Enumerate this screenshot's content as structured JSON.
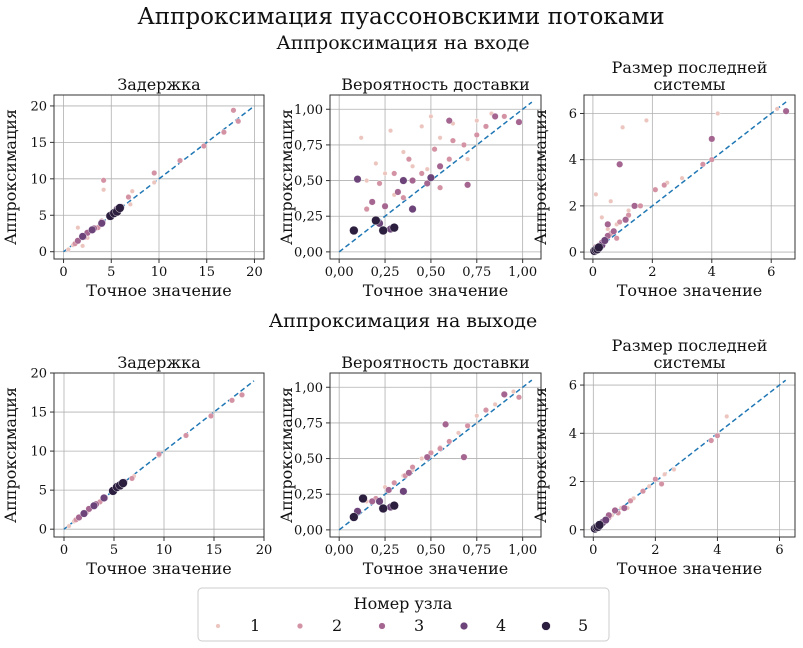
{
  "figure": {
    "title": "Аппроксимация пуассоновскими потоками",
    "row_titles": [
      "Аппроксимация на входе",
      "Аппроксимация на выходе"
    ],
    "row_title_color": "#8e2c6b"
  },
  "legend": {
    "title": "Номер узла",
    "items": [
      {
        "label": "1",
        "color": "#ecc5bf"
      },
      {
        "label": "2",
        "color": "#d393a4"
      },
      {
        "label": "3",
        "color": "#a46690"
      },
      {
        "label": "4",
        "color": "#6c4479"
      },
      {
        "label": "5",
        "color": "#2c1e3e"
      }
    ]
  },
  "colors": {
    "diagonal": "#1f77b4",
    "grid": "#b0b0b0"
  },
  "chart_data": [
    {
      "type": "scatter",
      "row": 0,
      "col": 0,
      "title": "Задержка",
      "xlabel": "Точное значение",
      "ylabel": "Аппроксимация",
      "xlim": [
        -1,
        21
      ],
      "ylim": [
        -1,
        21.5
      ],
      "xticks": [
        0,
        5,
        10,
        15,
        20
      ],
      "yticks": [
        0,
        5,
        10,
        15,
        20
      ],
      "tick_labels_x": [
        "0",
        "5",
        "10",
        "15",
        "20"
      ],
      "tick_labels_y": [
        "0",
        "5",
        "10",
        "15",
        "20"
      ],
      "diagonal": [
        0,
        20
      ],
      "grid": true,
      "points": [
        [
          0.5,
          0.3,
          1
        ],
        [
          1.0,
          0.9,
          1
        ],
        [
          1.5,
          3.3,
          1
        ],
        [
          2.0,
          0.8,
          1
        ],
        [
          2.5,
          1.9,
          1
        ],
        [
          3.0,
          2.8,
          1
        ],
        [
          4.2,
          8.5,
          1
        ],
        [
          7.2,
          8.3,
          1
        ],
        [
          7.0,
          6.5,
          1
        ],
        [
          9.5,
          9.5,
          1
        ],
        [
          1.2,
          1.1,
          2
        ],
        [
          2.2,
          2.0,
          2
        ],
        [
          3.6,
          3.3,
          2
        ],
        [
          4.0,
          4.2,
          2
        ],
        [
          4.2,
          9.8,
          2
        ],
        [
          6.8,
          7.5,
          2
        ],
        [
          9.5,
          10.8,
          2
        ],
        [
          12.2,
          12.5,
          2
        ],
        [
          14.7,
          14.5,
          2
        ],
        [
          16.8,
          16.4,
          2
        ],
        [
          17.8,
          19.4,
          2
        ],
        [
          18.3,
          17.9,
          2
        ],
        [
          1.5,
          1.5,
          3
        ],
        [
          2.5,
          2.6,
          3
        ],
        [
          3.2,
          3.2,
          3
        ],
        [
          4.1,
          4.0,
          3
        ],
        [
          5.0,
          5.0,
          3
        ],
        [
          5.8,
          5.7,
          3
        ],
        [
          2.0,
          2.1,
          4
        ],
        [
          3.0,
          3.0,
          4
        ],
        [
          4.0,
          3.9,
          4
        ],
        [
          5.1,
          5.2,
          4
        ],
        [
          5.6,
          5.8,
          4
        ],
        [
          6.0,
          6.1,
          4
        ],
        [
          4.9,
          4.9,
          5
        ],
        [
          5.3,
          5.3,
          5
        ],
        [
          5.6,
          5.5,
          5
        ],
        [
          5.9,
          6.0,
          5
        ]
      ]
    },
    {
      "type": "scatter",
      "row": 0,
      "col": 1,
      "title": "Вероятность доставки",
      "xlabel": "Точное значение",
      "ylabel": "Аппроксимация",
      "xlim": [
        -0.05,
        1.1
      ],
      "ylim": [
        -0.05,
        1.1
      ],
      "xticks": [
        0,
        0.25,
        0.5,
        0.75,
        1.0
      ],
      "yticks": [
        0,
        0.25,
        0.5,
        0.75,
        1.0
      ],
      "tick_labels_x": [
        "0,00",
        "0,25",
        "0,50",
        "0,75",
        "1,00"
      ],
      "tick_labels_y": [
        "0,00",
        "0,25",
        "0,50",
        "0,75",
        "1,00"
      ],
      "diagonal": [
        0,
        1.05
      ],
      "grid": true,
      "points": [
        [
          0.12,
          0.8,
          1
        ],
        [
          0.15,
          0.5,
          1
        ],
        [
          0.2,
          0.62,
          1
        ],
        [
          0.28,
          0.85,
          1
        ],
        [
          0.35,
          0.7,
          1
        ],
        [
          0.4,
          0.6,
          1
        ],
        [
          0.45,
          0.88,
          1
        ],
        [
          0.5,
          0.95,
          1
        ],
        [
          0.55,
          0.8,
          1
        ],
        [
          0.62,
          0.9,
          1
        ],
        [
          0.7,
          0.65,
          1
        ],
        [
          0.75,
          0.92,
          1
        ],
        [
          0.3,
          0.4,
          1
        ],
        [
          0.48,
          0.58,
          1
        ],
        [
          0.83,
          0.97,
          1
        ],
        [
          0.25,
          0.55,
          1
        ],
        [
          0.15,
          0.3,
          2
        ],
        [
          0.22,
          0.48,
          2
        ],
        [
          0.3,
          0.55,
          2
        ],
        [
          0.38,
          0.65,
          2
        ],
        [
          0.45,
          0.55,
          2
        ],
        [
          0.52,
          0.72,
          2
        ],
        [
          0.6,
          0.65,
          2
        ],
        [
          0.68,
          0.75,
          2
        ],
        [
          0.75,
          0.82,
          2
        ],
        [
          0.8,
          0.88,
          2
        ],
        [
          0.9,
          0.95,
          2
        ],
        [
          0.55,
          0.45,
          2
        ],
        [
          0.35,
          0.38,
          2
        ],
        [
          0.62,
          0.78,
          2
        ],
        [
          0.18,
          0.35,
          3
        ],
        [
          0.25,
          0.32,
          3
        ],
        [
          0.32,
          0.42,
          3
        ],
        [
          0.4,
          0.5,
          3
        ],
        [
          0.48,
          0.48,
          3
        ],
        [
          0.55,
          0.6,
          3
        ],
        [
          0.6,
          0.92,
          3
        ],
        [
          0.7,
          0.47,
          3
        ],
        [
          0.85,
          0.95,
          3
        ],
        [
          0.98,
          0.91,
          3
        ],
        [
          0.1,
          0.51,
          4
        ],
        [
          0.22,
          0.2,
          4
        ],
        [
          0.28,
          0.16,
          4
        ],
        [
          0.35,
          0.5,
          4
        ],
        [
          0.4,
          0.3,
          4
        ],
        [
          0.5,
          0.52,
          4
        ],
        [
          0.08,
          0.15,
          5
        ],
        [
          0.2,
          0.22,
          5
        ],
        [
          0.24,
          0.15,
          5
        ],
        [
          0.3,
          0.17,
          5
        ]
      ]
    },
    {
      "type": "scatter",
      "row": 0,
      "col": 2,
      "title": "Размер последней системы",
      "xlabel": "Точное значение",
      "ylabel": "Аппроксимация",
      "xlim": [
        -0.3,
        6.8
      ],
      "ylim": [
        -0.3,
        6.8
      ],
      "xticks": [
        0,
        2,
        4,
        6
      ],
      "yticks": [
        0,
        2,
        4,
        6
      ],
      "tick_labels_x": [
        "0",
        "2",
        "4",
        "6"
      ],
      "tick_labels_y": [
        "0",
        "2",
        "4",
        "6"
      ],
      "diagonal": [
        0,
        6.5
      ],
      "grid": true,
      "points": [
        [
          0.1,
          2.5,
          1
        ],
        [
          0.3,
          1.5,
          1
        ],
        [
          0.5,
          1.0,
          1
        ],
        [
          0.8,
          1.2,
          1
        ],
        [
          1.0,
          5.4,
          1
        ],
        [
          1.5,
          2.0,
          1
        ],
        [
          1.8,
          5.7,
          1
        ],
        [
          2.5,
          3.0,
          1
        ],
        [
          3.0,
          3.2,
          1
        ],
        [
          4.2,
          6.0,
          1
        ],
        [
          6.2,
          6.2,
          1
        ],
        [
          0.6,
          2.2,
          1
        ],
        [
          1.2,
          1.8,
          1
        ],
        [
          0.2,
          0.3,
          2
        ],
        [
          0.4,
          0.5,
          2
        ],
        [
          0.6,
          0.8,
          2
        ],
        [
          0.9,
          1.3,
          2
        ],
        [
          1.2,
          1.6,
          2
        ],
        [
          1.6,
          2.0,
          2
        ],
        [
          2.1,
          2.7,
          2
        ],
        [
          2.4,
          2.9,
          2
        ],
        [
          3.7,
          3.8,
          2
        ],
        [
          4.0,
          4.0,
          2
        ],
        [
          0.8,
          0.6,
          2
        ],
        [
          0.1,
          0.2,
          3
        ],
        [
          0.3,
          0.4,
          3
        ],
        [
          0.5,
          0.7,
          3
        ],
        [
          0.7,
          0.9,
          3
        ],
        [
          1.1,
          1.4,
          3
        ],
        [
          1.4,
          2.0,
          3
        ],
        [
          0.5,
          1.2,
          3
        ],
        [
          0.9,
          3.8,
          3
        ],
        [
          4.0,
          4.9,
          3
        ],
        [
          6.5,
          6.1,
          3
        ],
        [
          0.1,
          0.1,
          4
        ],
        [
          0.2,
          0.2,
          4
        ],
        [
          0.3,
          0.3,
          4
        ],
        [
          0.4,
          0.5,
          4
        ],
        [
          0.05,
          0.05,
          5
        ],
        [
          0.1,
          0.1,
          5
        ],
        [
          0.15,
          0.12,
          5
        ],
        [
          0.2,
          0.2,
          5
        ]
      ]
    },
    {
      "type": "scatter",
      "row": 1,
      "col": 0,
      "title": "Задержка",
      "xlabel": "Точное значение",
      "ylabel": "Аппроксимация",
      "xlim": [
        -1,
        20
      ],
      "ylim": [
        -1,
        20
      ],
      "xticks": [
        0,
        5,
        10,
        15,
        20
      ],
      "yticks": [
        0,
        5,
        10,
        15,
        20
      ],
      "tick_labels_x": [
        "0",
        "5",
        "10",
        "15",
        "20"
      ],
      "tick_labels_y": [
        "0",
        "5",
        "10",
        "15",
        "20"
      ],
      "diagonal": [
        0,
        19
      ],
      "grid": true,
      "points": [
        [
          0.5,
          0.4,
          1
        ],
        [
          1.0,
          1.0,
          1
        ],
        [
          1.5,
          1.4,
          1
        ],
        [
          2.0,
          2.1,
          1
        ],
        [
          2.5,
          2.4,
          1
        ],
        [
          3.0,
          3.1,
          1
        ],
        [
          7.0,
          6.8,
          1
        ],
        [
          9.5,
          9.4,
          1
        ],
        [
          1.2,
          1.2,
          2
        ],
        [
          2.2,
          2.1,
          2
        ],
        [
          3.6,
          3.5,
          2
        ],
        [
          4.0,
          4.1,
          2
        ],
        [
          6.8,
          6.5,
          2
        ],
        [
          9.5,
          9.6,
          2
        ],
        [
          12.2,
          12.0,
          2
        ],
        [
          14.7,
          14.5,
          2
        ],
        [
          16.8,
          16.5,
          2
        ],
        [
          17.8,
          17.2,
          2
        ],
        [
          1.5,
          1.5,
          3
        ],
        [
          2.5,
          2.6,
          3
        ],
        [
          3.2,
          3.2,
          3
        ],
        [
          4.1,
          4.0,
          3
        ],
        [
          5.0,
          5.0,
          3
        ],
        [
          5.8,
          5.7,
          3
        ],
        [
          2.0,
          2.0,
          4
        ],
        [
          3.0,
          3.0,
          4
        ],
        [
          4.0,
          4.0,
          4
        ],
        [
          5.1,
          5.1,
          4
        ],
        [
          5.6,
          5.7,
          4
        ],
        [
          6.0,
          6.0,
          4
        ],
        [
          4.9,
          4.9,
          5
        ],
        [
          5.3,
          5.4,
          5
        ],
        [
          5.6,
          5.6,
          5
        ],
        [
          5.9,
          5.9,
          5
        ]
      ]
    },
    {
      "type": "scatter",
      "row": 1,
      "col": 1,
      "title": "Вероятность доставки",
      "xlabel": "Точное значение",
      "ylabel": "Аппроксимация",
      "xlim": [
        -0.05,
        1.1
      ],
      "ylim": [
        -0.05,
        1.1
      ],
      "xticks": [
        0,
        0.25,
        0.5,
        0.75,
        1.0
      ],
      "yticks": [
        0,
        0.25,
        0.5,
        0.75,
        1.0
      ],
      "tick_labels_x": [
        "0,00",
        "0,25",
        "0,50",
        "0,75",
        "1,00"
      ],
      "tick_labels_y": [
        "0,00",
        "0,25",
        "0,50",
        "0,75",
        "1,00"
      ],
      "diagonal": [
        0,
        1.05
      ],
      "grid": true,
      "points": [
        [
          0.15,
          0.2,
          1
        ],
        [
          0.25,
          0.3,
          1
        ],
        [
          0.35,
          0.38,
          1
        ],
        [
          0.45,
          0.5,
          1
        ],
        [
          0.55,
          0.58,
          1
        ],
        [
          0.65,
          0.68,
          1
        ],
        [
          0.75,
          0.8,
          1
        ],
        [
          0.85,
          0.88,
          1
        ],
        [
          0.95,
          0.97,
          1
        ],
        [
          0.4,
          0.42,
          1
        ],
        [
          0.6,
          0.62,
          1
        ],
        [
          0.2,
          0.22,
          2
        ],
        [
          0.3,
          0.33,
          2
        ],
        [
          0.4,
          0.44,
          2
        ],
        [
          0.5,
          0.54,
          2
        ],
        [
          0.6,
          0.62,
          2
        ],
        [
          0.7,
          0.73,
          2
        ],
        [
          0.8,
          0.84,
          2
        ],
        [
          0.98,
          0.93,
          2
        ],
        [
          0.55,
          0.57,
          2
        ],
        [
          0.36,
          0.38,
          2
        ],
        [
          0.18,
          0.2,
          3
        ],
        [
          0.27,
          0.28,
          3
        ],
        [
          0.38,
          0.4,
          3
        ],
        [
          0.48,
          0.51,
          3
        ],
        [
          0.58,
          0.74,
          3
        ],
        [
          0.68,
          0.51,
          3
        ],
        [
          0.9,
          0.95,
          3
        ],
        [
          0.1,
          0.13,
          4
        ],
        [
          0.22,
          0.2,
          4
        ],
        [
          0.28,
          0.16,
          4
        ],
        [
          0.35,
          0.27,
          4
        ],
        [
          0.08,
          0.09,
          5
        ],
        [
          0.13,
          0.22,
          5
        ],
        [
          0.24,
          0.15,
          5
        ],
        [
          0.3,
          0.17,
          5
        ]
      ]
    },
    {
      "type": "scatter",
      "row": 1,
      "col": 2,
      "title": "Размер последней системы",
      "xlabel": "Точное значение",
      "ylabel": "Аппроксимация",
      "xlim": [
        -0.3,
        6.5
      ],
      "ylim": [
        -0.3,
        6.5
      ],
      "xticks": [
        0,
        2,
        4,
        6
      ],
      "yticks": [
        0,
        2,
        4,
        6
      ],
      "tick_labels_x": [
        "0",
        "2",
        "4",
        "6"
      ],
      "tick_labels_y": [
        "0",
        "2",
        "4",
        "6"
      ],
      "diagonal": [
        0,
        6.2
      ],
      "grid": true,
      "points": [
        [
          0.3,
          0.3,
          1
        ],
        [
          0.6,
          0.6,
          1
        ],
        [
          0.9,
          0.9,
          1
        ],
        [
          1.3,
          1.3,
          1
        ],
        [
          1.8,
          1.8,
          1
        ],
        [
          2.3,
          2.3,
          1
        ],
        [
          2.6,
          2.5,
          1
        ],
        [
          4.3,
          4.7,
          1
        ],
        [
          1.1,
          0.9,
          1
        ],
        [
          0.2,
          0.2,
          2
        ],
        [
          0.5,
          0.5,
          2
        ],
        [
          0.8,
          0.7,
          2
        ],
        [
          1.2,
          1.2,
          2
        ],
        [
          1.6,
          1.6,
          2
        ],
        [
          2.0,
          2.1,
          2
        ],
        [
          2.2,
          1.9,
          2
        ],
        [
          3.8,
          3.7,
          2
        ],
        [
          4.0,
          3.9,
          2
        ],
        [
          0.1,
          0.1,
          3
        ],
        [
          0.3,
          0.3,
          3
        ],
        [
          0.5,
          0.6,
          3
        ],
        [
          0.7,
          0.8,
          3
        ],
        [
          1.0,
          0.9,
          3
        ],
        [
          0.1,
          0.1,
          4
        ],
        [
          0.2,
          0.2,
          4
        ],
        [
          0.3,
          0.3,
          4
        ],
        [
          0.4,
          0.4,
          4
        ],
        [
          0.05,
          0.05,
          5
        ],
        [
          0.1,
          0.1,
          5
        ],
        [
          0.15,
          0.12,
          5
        ],
        [
          0.2,
          0.2,
          5
        ]
      ]
    }
  ]
}
